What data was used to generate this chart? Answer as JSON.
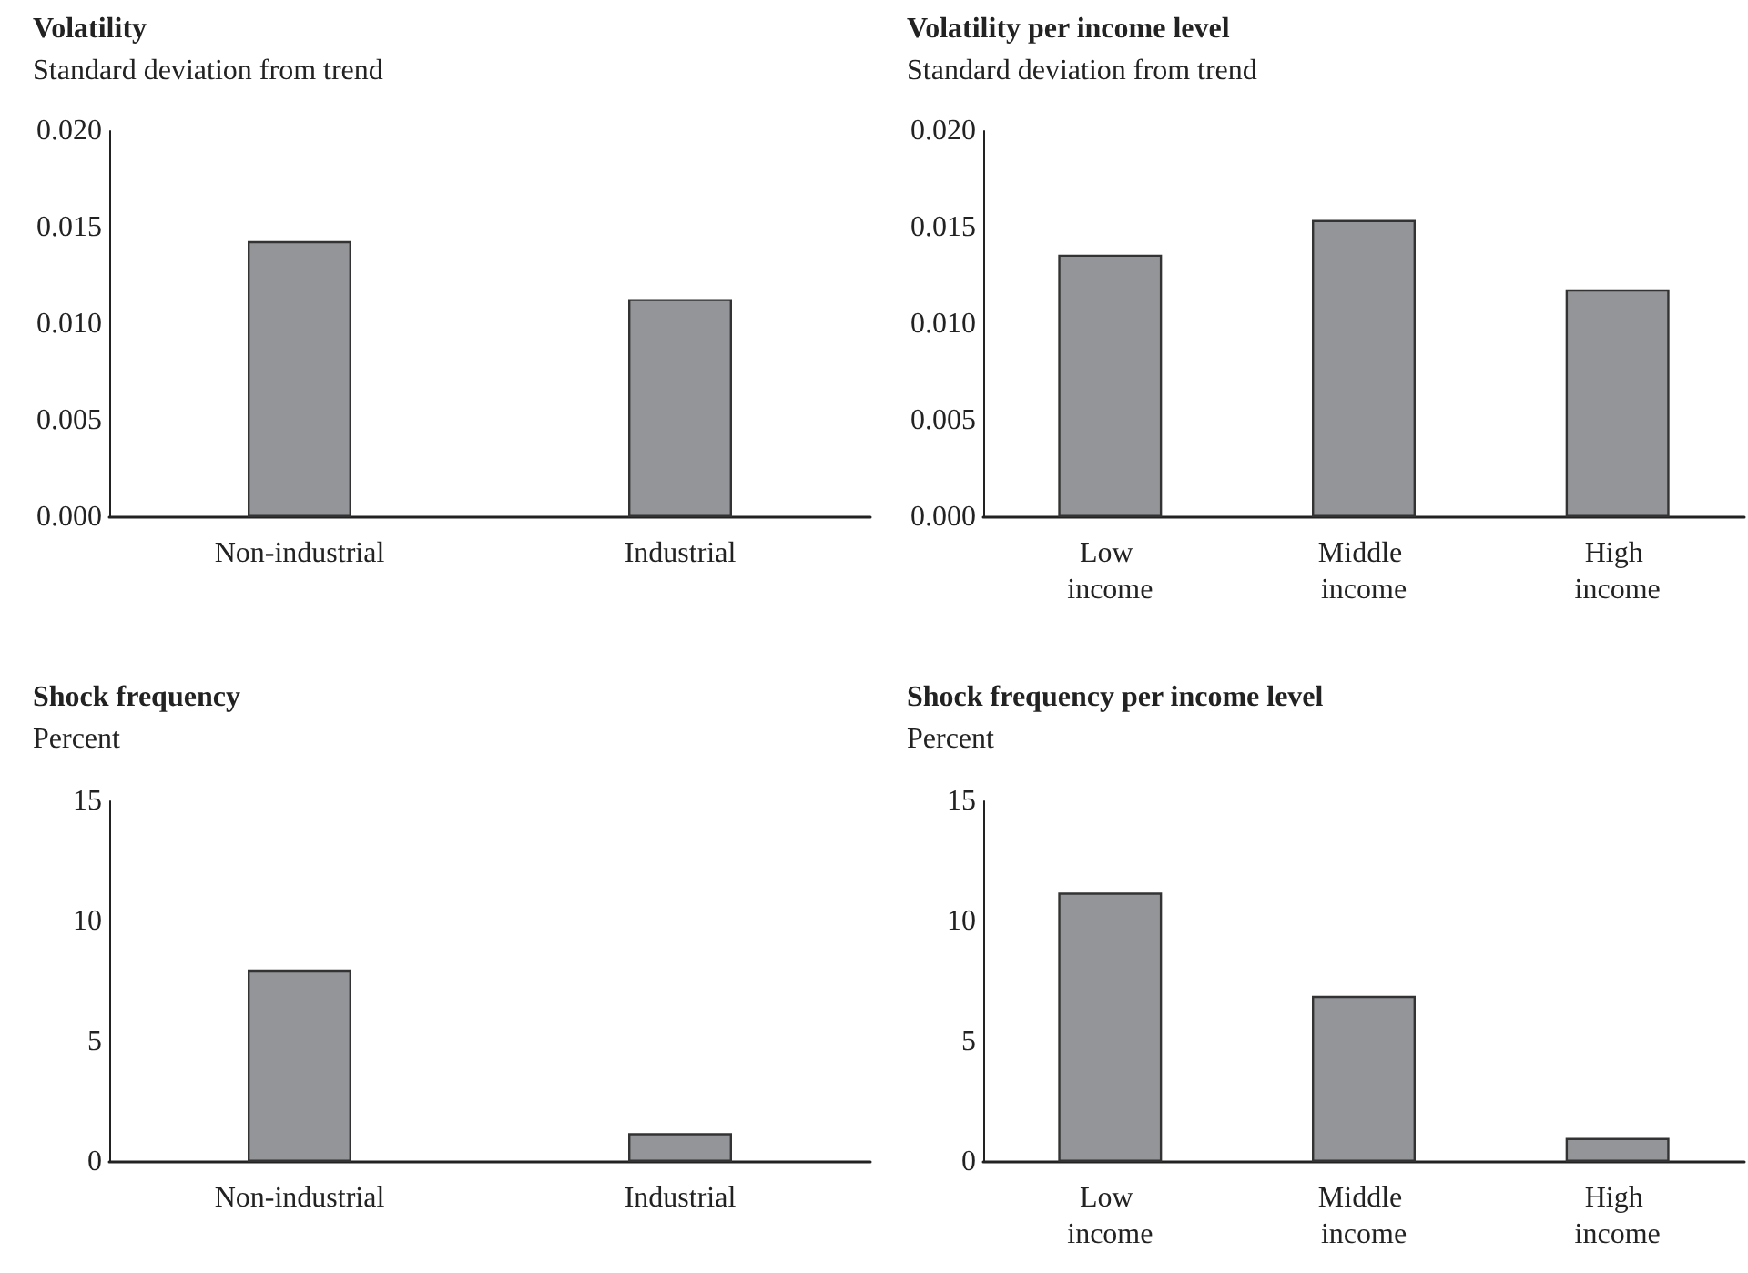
{
  "chart_data": [
    {
      "type": "bar",
      "title": "Volatility",
      "ylabel": "Standard deviation from trend",
      "categories": [
        "Non-industrial",
        "Industrial"
      ],
      "values": [
        0.0143,
        0.0113
      ],
      "color": "#939598",
      "ylim": [
        0,
        0.02
      ],
      "yticks": [
        {
          "value": 0,
          "label": "0.000"
        },
        0.005,
        {
          "value": 0.01,
          "label": "0.010"
        },
        0.015,
        {
          "value": 0.02,
          "label": "0.020"
        }
      ]
    },
    {
      "type": "bar",
      "title": "Volatility per income level",
      "ylabel": "Standard deviation from trend",
      "categories": [
        "Low income",
        "Middle income",
        "High income"
      ],
      "values": [
        0.0136,
        0.0154,
        0.0118
      ],
      "color": "#939598",
      "ylim": [
        0,
        0.02
      ],
      "yticks": [
        {
          "value": 0,
          "label": "0.000"
        },
        0.005,
        {
          "value": 0.01,
          "label": "0.010"
        },
        0.015,
        {
          "value": 0.02,
          "label": "0.020"
        }
      ]
    },
    {
      "type": "bar",
      "title": "Shock frequency",
      "ylabel": "Percent",
      "categories": [
        "Non-industrial",
        "Industrial"
      ],
      "values": [
        8.0,
        1.2
      ],
      "color": "#939598",
      "ylim": [
        0,
        15
      ],
      "yticks": [
        0,
        5,
        10,
        15
      ]
    },
    {
      "type": "bar",
      "title": "Shock frequency per income level",
      "ylabel": "Percent",
      "categories": [
        "Low income",
        "Middle income",
        "High income"
      ],
      "values": [
        11.2,
        6.9,
        1.0
      ],
      "color": "#939598",
      "ylim": [
        0,
        15
      ],
      "yticks": [
        0,
        5,
        10,
        15
      ]
    }
  ]
}
